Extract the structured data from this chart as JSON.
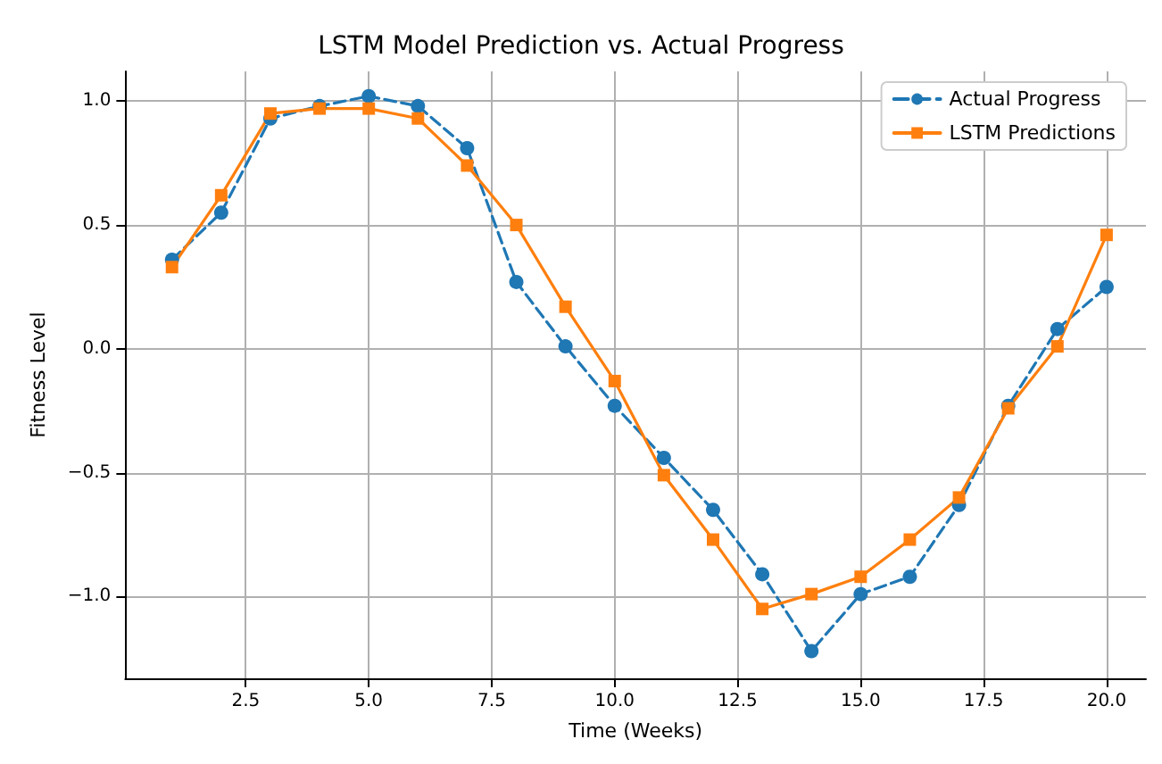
{
  "chart_data": {
    "type": "line",
    "title": "LSTM Model Prediction vs. Actual Progress",
    "xlabel": "Time (Weeks)",
    "ylabel": "Fitness Level",
    "x": [
      1,
      2,
      3,
      4,
      5,
      6,
      7,
      8,
      9,
      10,
      11,
      12,
      13,
      14,
      15,
      16,
      17,
      18,
      19,
      20
    ],
    "series": [
      {
        "name": "Actual Progress",
        "color": "#1f77b4",
        "marker": "circle",
        "line_style": "dashed",
        "values": [
          0.36,
          0.55,
          0.93,
          0.98,
          1.02,
          0.98,
          0.81,
          0.27,
          0.01,
          -0.23,
          -0.44,
          -0.65,
          -0.91,
          -1.22,
          -0.99,
          -0.92,
          -0.63,
          -0.23,
          0.08,
          0.25
        ]
      },
      {
        "name": "LSTM Predictions",
        "color": "#ff7f0e",
        "marker": "square",
        "line_style": "solid",
        "values": [
          0.33,
          0.62,
          0.95,
          0.97,
          0.97,
          0.93,
          0.74,
          0.5,
          0.17,
          -0.13,
          -0.51,
          -0.77,
          -1.05,
          -0.99,
          -0.92,
          -0.77,
          -0.6,
          -0.24,
          0.01,
          0.46
        ]
      }
    ],
    "xlim": [
      0.05,
      20.8
    ],
    "xticks": [
      2.5,
      {
        "value": 5,
        "label": "5.0"
      },
      7.5,
      {
        "value": 10,
        "label": "10.0"
      },
      12.5,
      {
        "value": 15,
        "label": "15.0"
      },
      17.5,
      {
        "value": 20,
        "label": "20.0"
      }
    ],
    "ylim": [
      -1.33,
      1.12
    ],
    "yticks": [
      {
        "value": -1,
        "label": "−1.0"
      },
      {
        "value": -0.5,
        "label": "−0.5"
      },
      {
        "value": 0,
        "label": "0.0"
      },
      0.5,
      {
        "value": 1,
        "label": "1.0"
      }
    ],
    "grid": true,
    "legend": "top right"
  }
}
